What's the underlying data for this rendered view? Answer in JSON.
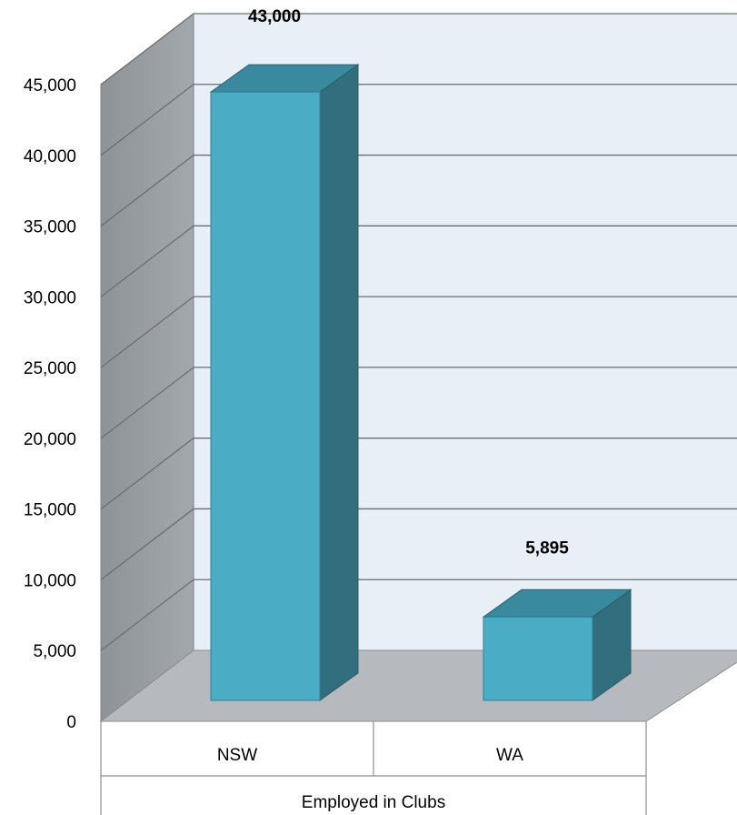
{
  "chart_data": {
    "type": "bar",
    "style": "3d-column",
    "categories": [
      "NSW",
      "WA"
    ],
    "values": [
      43000,
      5895
    ],
    "data_labels": [
      "43,000",
      "5,895"
    ],
    "group_label": "Employed in Clubs",
    "y_ticks": [
      0,
      5000,
      10000,
      15000,
      20000,
      25000,
      30000,
      35000,
      40000,
      45000
    ],
    "y_tick_labels": [
      "0",
      "5,000",
      "10,000",
      "15,000",
      "20,000",
      "25,000",
      "30,000",
      "35,000",
      "40,000",
      "45,000"
    ],
    "ylim": [
      0,
      45000
    ],
    "grid": true,
    "legend": "none",
    "colors": {
      "bar_front": "#4BACC6",
      "bar_top": "#3A8A9F",
      "bar_side": "#316E7E",
      "back_wall": "#E9EFF6",
      "side_wall": "#979DA3",
      "floor": "#B6B9BD",
      "gridline": "#6B6F73"
    }
  }
}
